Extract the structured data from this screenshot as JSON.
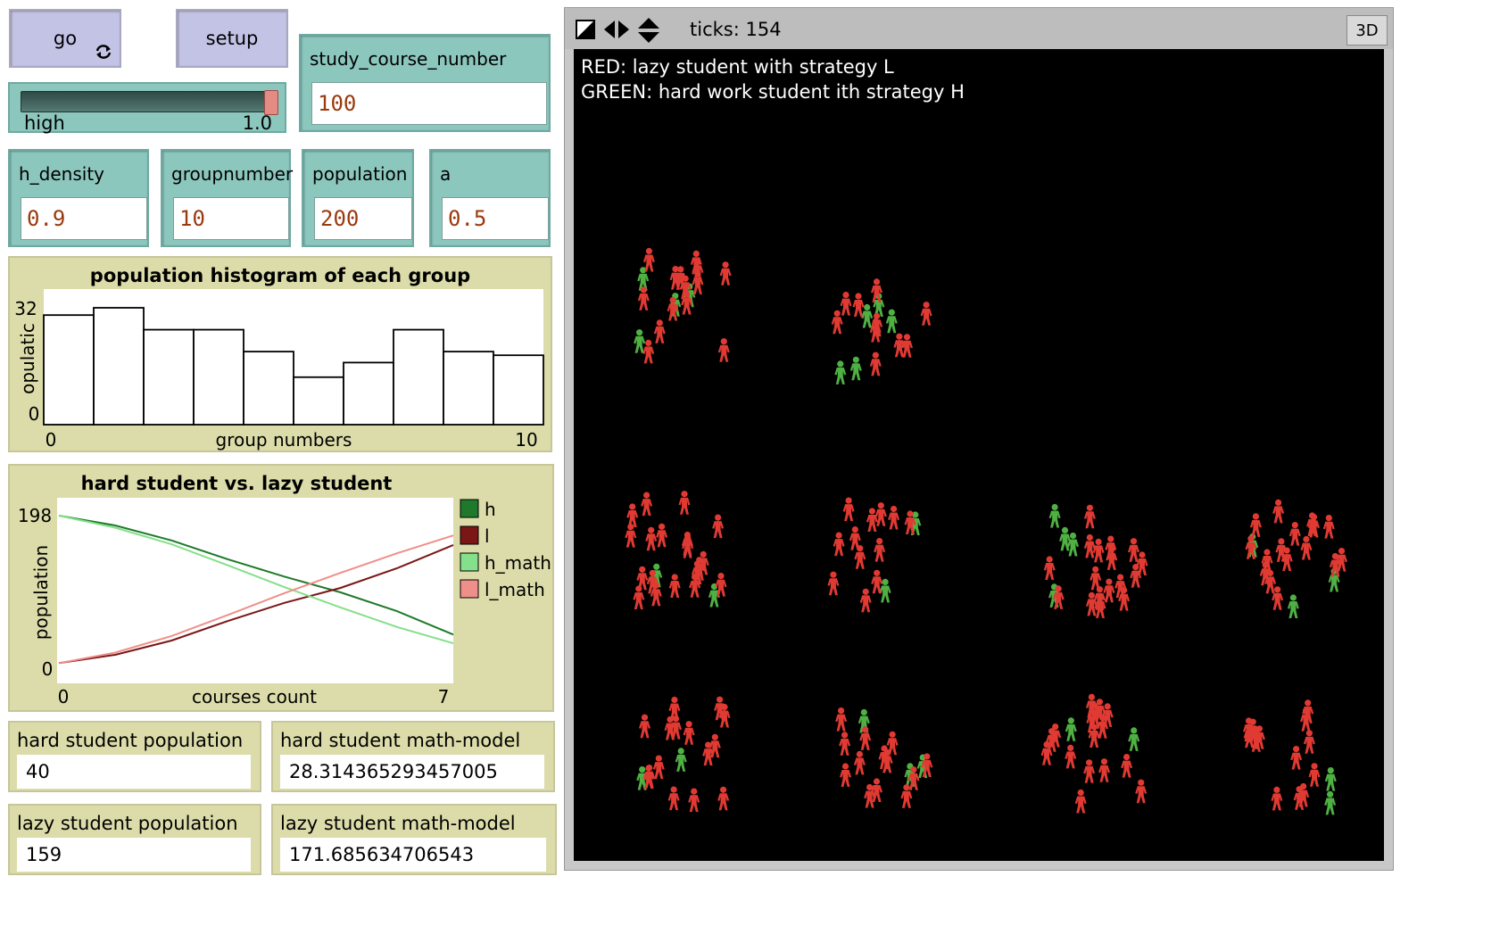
{
  "buttons": {
    "go_label": "go",
    "setup_label": "setup"
  },
  "slider": {
    "label": "high",
    "value": "1.0",
    "fraction": 1.0
  },
  "inputs": {
    "study_course_number": {
      "label": "study_course_number",
      "value": "100"
    },
    "h_density": {
      "label": "h_density",
      "value": "0.9"
    },
    "groupnumber": {
      "label": "groupnumber",
      "value": "10"
    },
    "population": {
      "label": "population",
      "value": "200"
    },
    "a": {
      "label": "a",
      "value": "0.5"
    }
  },
  "histogram": {
    "title": "population histogram of each group",
    "y_label": "opulatic",
    "x_label": "group numbers",
    "y_ticks": [
      "32",
      "0"
    ],
    "x_ticks": [
      "0",
      "10"
    ]
  },
  "lineplot": {
    "title": "hard student vs. lazy student",
    "y_label": "population",
    "x_label": "courses count",
    "y_ticks": [
      "198",
      "0"
    ],
    "x_ticks": [
      "0",
      "7"
    ],
    "legend": [
      {
        "name": "h",
        "color": "#1e7a2a"
      },
      {
        "name": "l",
        "color": "#7a1616"
      },
      {
        "name": "h_math",
        "color": "#84e08a"
      },
      {
        "name": "l_math",
        "color": "#ef8f8a"
      }
    ]
  },
  "chart_data": [
    {
      "type": "bar",
      "title": "population histogram of each group",
      "xlabel": "group numbers",
      "ylabel": "opulatic",
      "xlim": [
        0,
        10
      ],
      "ylim": [
        0,
        32
      ],
      "categories": [
        "0",
        "1",
        "2",
        "3",
        "4",
        "5",
        "6",
        "7",
        "8",
        "9"
      ],
      "values": [
        30,
        32,
        26,
        26,
        20,
        13,
        17,
        26,
        20,
        19
      ]
    },
    {
      "type": "line",
      "title": "hard student vs. lazy student",
      "xlabel": "courses count",
      "ylabel": "population",
      "xlim": [
        0,
        7
      ],
      "ylim": [
        0,
        198
      ],
      "series": [
        {
          "name": "h",
          "color": "#1e7a2a",
          "x": [
            0,
            1,
            2,
            3,
            4,
            5,
            6,
            7
          ],
          "y": [
            198,
            185,
            165,
            140,
            117,
            96,
            71,
            40
          ]
        },
        {
          "name": "l",
          "color": "#7a1616",
          "x": [
            0,
            1,
            2,
            3,
            4,
            5,
            6,
            7
          ],
          "y": [
            2,
            13,
            32,
            58,
            82,
            102,
            128,
            159
          ]
        },
        {
          "name": "h_math",
          "color": "#84e08a",
          "x": [
            0,
            1,
            2,
            3,
            4,
            5,
            6,
            7
          ],
          "y": [
            198,
            182,
            160,
            132,
            103,
            76,
            50,
            28.31
          ]
        },
        {
          "name": "l_math",
          "color": "#ef8f8a",
          "x": [
            0,
            1,
            2,
            3,
            4,
            5,
            6,
            7
          ],
          "y": [
            2,
            16,
            38,
            66,
            95,
            122,
            148,
            171.69
          ]
        }
      ]
    }
  ],
  "monitors": {
    "hard_pop": {
      "label": "hard student population",
      "value": "40"
    },
    "hard_math": {
      "label": "hard student math-model",
      "value": "28.314365293457005"
    },
    "lazy_pop": {
      "label": "lazy student population",
      "value": "159"
    },
    "lazy_math": {
      "label": "lazy student math-model",
      "value": "171.685634706543"
    }
  },
  "view": {
    "ticks_text": "ticks: 154",
    "btn_3d": "3D",
    "legend_red": "RED: lazy student with strategy L",
    "legend_green": "GREEN: hard work student ith strategy H",
    "colors": {
      "red": "#e03a33",
      "green": "#4fb043"
    }
  }
}
